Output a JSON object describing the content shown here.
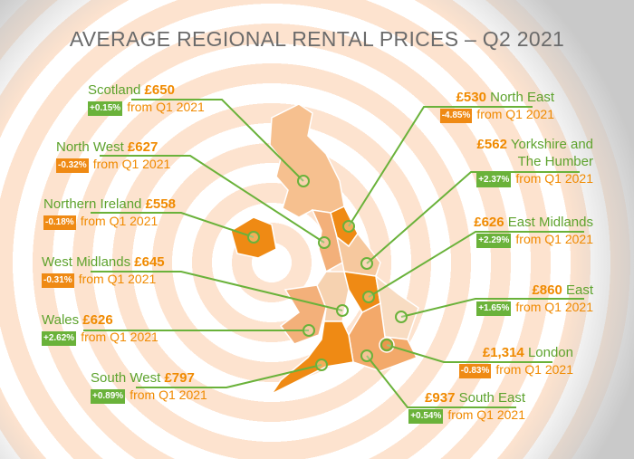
{
  "title": "AVERAGE REGIONAL RENTAL PRICES – Q2 2021",
  "regions": [
    {
      "name": "Scotland",
      "price": "£650",
      "change": "+0.15%",
      "period": "from Q1 2021"
    },
    {
      "name": "North West",
      "price": "£627",
      "change": "-0.32%",
      "period": "from Q1 2021"
    },
    {
      "name": "Northern Ireland",
      "price": "£558",
      "change": "-0.18%",
      "period": "from Q1 2021"
    },
    {
      "name": "West Midlands",
      "price": "£645",
      "change": "-0.31%",
      "period": "from Q1 2021"
    },
    {
      "name": "Wales",
      "price": "£626",
      "change": "+2.62%",
      "period": "from Q1 2021"
    },
    {
      "name": "South West",
      "price": "£797",
      "change": "+0.89%",
      "period": "from Q1 2021"
    },
    {
      "name": "North East",
      "price": "£530",
      "change": "-4.85%",
      "period": "from Q1 2021"
    },
    {
      "name": "Yorkshire and The Humber",
      "price": "£562",
      "change": "+2.37%",
      "period": "from Q1 2021"
    },
    {
      "name": "East Midlands",
      "price": "£626",
      "change": "+2.29%",
      "period": "from Q1 2021"
    },
    {
      "name": "East",
      "price": "£860",
      "change": "+1.65%",
      "period": "from Q1 2021"
    },
    {
      "name": "London",
      "price": "£1,314",
      "change": "-0.83%",
      "period": "from Q1 2021"
    },
    {
      "name": "South East",
      "price": "£937",
      "change": "+0.54%",
      "period": "from Q1 2021"
    }
  ]
}
